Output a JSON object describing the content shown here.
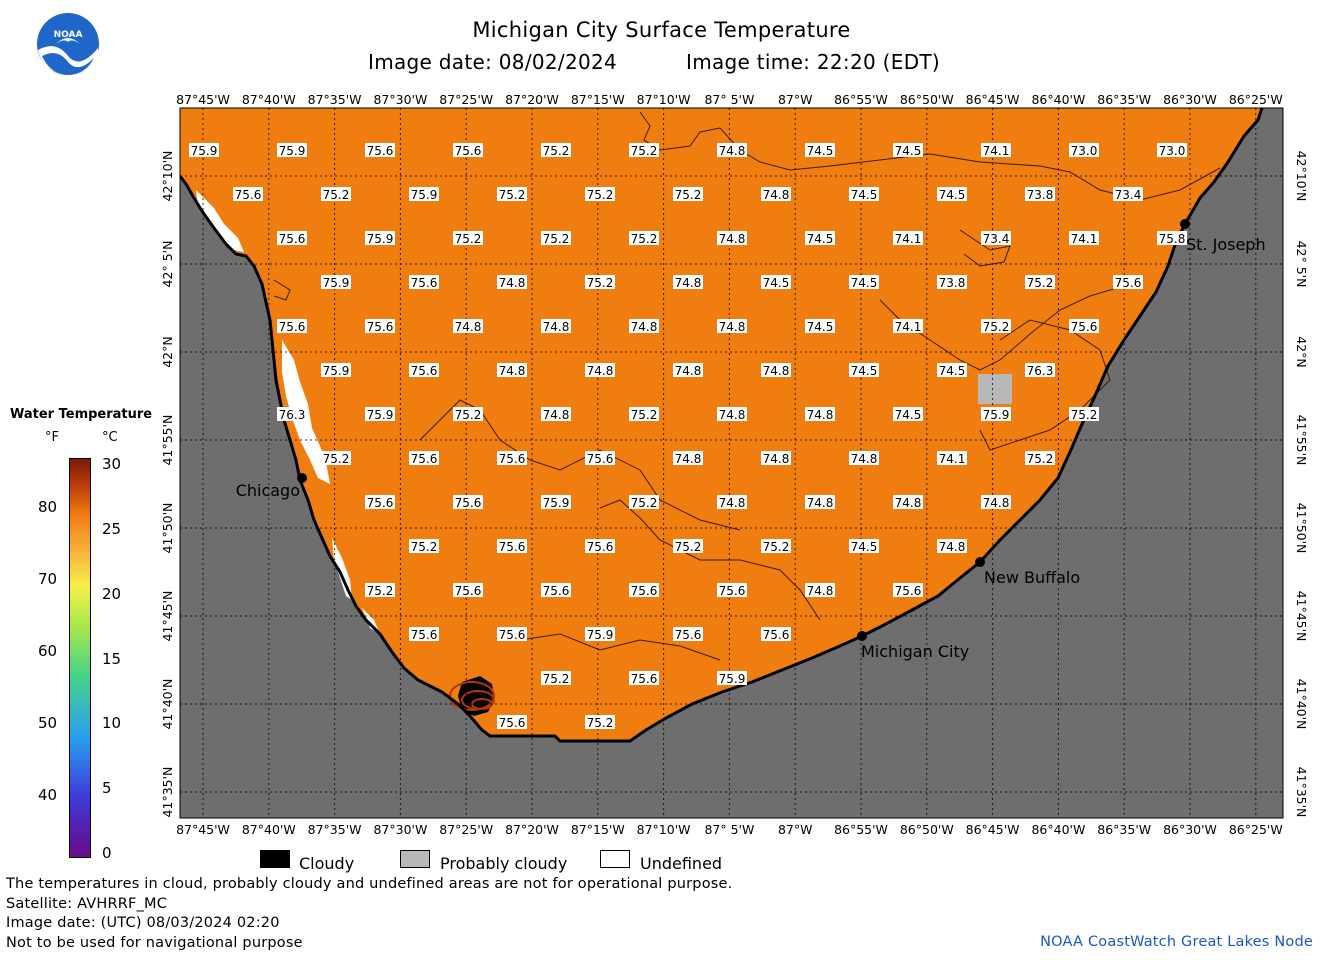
{
  "header": {
    "title": "Michigan City Surface Temperature",
    "image_date": "Image date: 08/02/2024",
    "image_time": "Image time: 22:20 (EDT)"
  },
  "logo": {
    "text": "NOAA"
  },
  "colors": {
    "land": "#6e6e6e",
    "water": "#f07d10",
    "probably_cloudy": "#b8b8b8",
    "undefined": "#ffffff",
    "cloudy": "#000000"
  },
  "lon_labels": [
    "87°45'W",
    "87°40'W",
    "87°35'W",
    "87°30'W",
    "87°25'W",
    "87°20'W",
    "87°15'W",
    "87°10'W",
    "87° 5'W",
    "87°W",
    "86°55'W",
    "86°50'W",
    "86°45'W",
    "86°40'W",
    "86°35'W",
    "86°30'W",
    "86°25'W"
  ],
  "lat_labels": [
    "42°10'N",
    "42° 5'N",
    "42°N",
    "41°55'N",
    "41°50'N",
    "41°45'N",
    "41°40'N",
    "41°35'N"
  ],
  "cities": [
    {
      "name": "Chicago"
    },
    {
      "name": "St. Joseph"
    },
    {
      "name": "New Buffalo"
    },
    {
      "name": "Michigan City"
    }
  ],
  "temperature_rows": [
    [
      "75.9",
      "75.9",
      "75.6",
      "75.6",
      "75.2",
      "75.2",
      "74.8",
      "74.5",
      "74.5",
      "74.1",
      "73.0",
      "73.0"
    ],
    [
      "75.6",
      "75.2",
      "75.9",
      "75.2",
      "75.2",
      "75.2",
      "74.8",
      "74.5",
      "74.5",
      "73.8",
      "73.4"
    ],
    [
      "75.6",
      "75.9",
      "75.2",
      "75.2",
      "75.2",
      "74.8",
      "74.5",
      "74.1",
      "73.4",
      "74.1",
      "75.8"
    ],
    [
      "75.9",
      "75.6",
      "74.8",
      "75.2",
      "74.8",
      "74.5",
      "74.5",
      "73.8",
      "75.2",
      "75.6"
    ],
    [
      "75.6",
      "75.6",
      "74.8",
      "74.8",
      "74.8",
      "74.8",
      "74.5",
      "74.1",
      "75.2",
      "75.6"
    ],
    [
      "75.9",
      "75.6",
      "74.8",
      "74.8",
      "74.8",
      "74.8",
      "74.5",
      "74.5",
      "76.3"
    ],
    [
      "76.3",
      "75.9",
      "75.2",
      "74.8",
      "75.2",
      "74.8",
      "74.8",
      "74.5",
      "75.9",
      "75.2"
    ],
    [
      "75.2",
      "75.6",
      "75.6",
      "75.6",
      "74.8",
      "74.8",
      "74.8",
      "74.1",
      "75.2"
    ],
    [
      "75.6",
      "75.6",
      "75.9",
      "75.2",
      "74.8",
      "74.8",
      "74.8",
      "74.8"
    ],
    [
      "75.2",
      "75.6",
      "75.6",
      "75.2",
      "75.2",
      "74.5",
      "74.8"
    ],
    [
      "75.2",
      "75.6",
      "75.6",
      "75.6",
      "75.6",
      "74.8",
      "75.6"
    ],
    [
      "75.6",
      "75.6",
      "75.9",
      "75.6",
      "75.6"
    ],
    [
      "75.2",
      "75.6",
      "75.9"
    ],
    [
      "75.6",
      "75.2"
    ]
  ],
  "legend": {
    "title": "Water Temperature",
    "unit_f": "°F",
    "unit_c": "°C",
    "f_ticks": [
      "80",
      "70",
      "60",
      "50",
      "40"
    ],
    "c_ticks": [
      "30",
      "25",
      "20",
      "15",
      "10",
      "5",
      "0"
    ],
    "f_range": [
      32,
      86
    ],
    "c_range": [
      0,
      30
    ]
  },
  "key": {
    "cloudy": "Cloudy",
    "probably_cloudy": "Probably cloudy",
    "undefined": "Undefined"
  },
  "notes": {
    "line1": "The temperatures in cloud, probably cloudy and undefined areas are not for operational purpose.",
    "line2": "Satellite: AVHRRF_MC",
    "line3": "Image date: (UTC) 08/03/2024  02:20",
    "line4": "Not to be used for navigational purpose"
  },
  "credit": "NOAA CoastWatch Great Lakes Node"
}
